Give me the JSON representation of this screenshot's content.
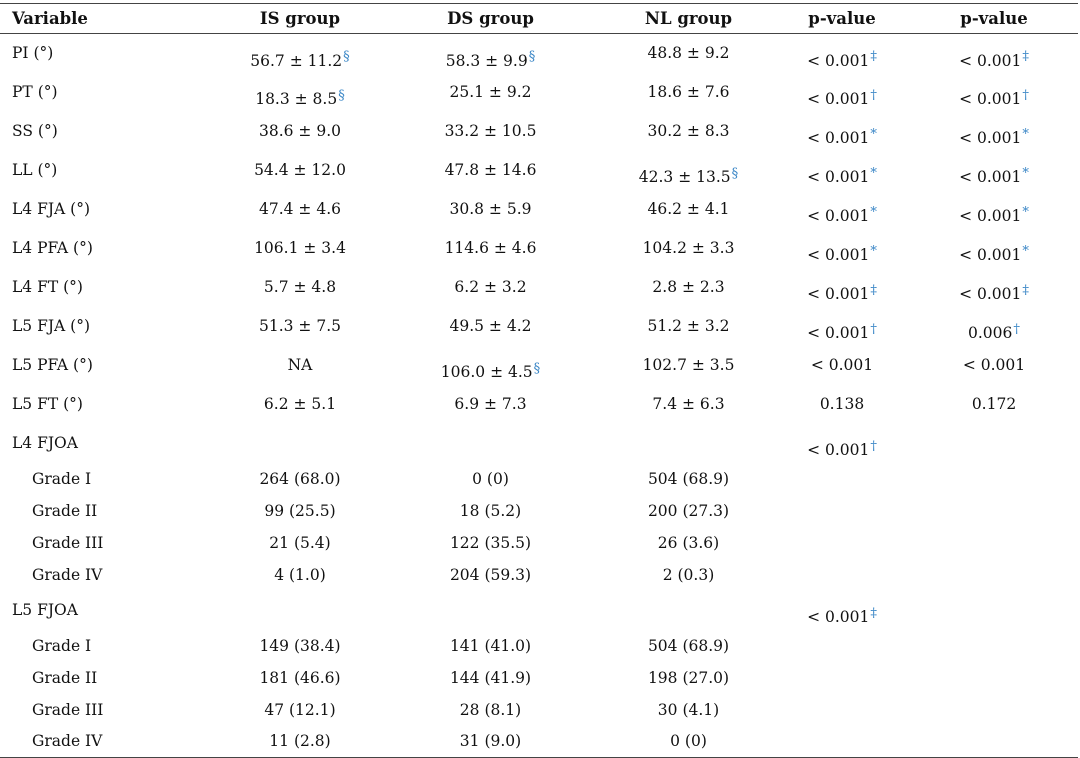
{
  "columns": [
    "Variable",
    "IS group",
    "DS group",
    "NL group",
    "p-value",
    "p-value"
  ],
  "rows": [
    {
      "label": "PI (°)",
      "c1": {
        "v": "56.7 ± 11.2",
        "s": "§",
        "low": true
      },
      "c2": {
        "v": "58.3 ± 9.9",
        "s": "§",
        "low": true
      },
      "c3": {
        "v": "48.8 ± 9.2"
      },
      "p1": {
        "v": "< 0.001",
        "s": "‡",
        "low": true
      },
      "p2": {
        "v": "< 0.001",
        "s": "‡",
        "low": true
      }
    },
    {
      "label": "PT (°)",
      "c1": {
        "v": "18.3 ± 8.5",
        "s": "§",
        "low": true
      },
      "c2": {
        "v": "25.1 ± 9.2"
      },
      "c3": {
        "v": "18.6 ± 7.6"
      },
      "p1": {
        "v": "< 0.001",
        "s": "†",
        "low": true
      },
      "p2": {
        "v": "< 0.001",
        "s": "†",
        "low": true
      }
    },
    {
      "label": "SS (°)",
      "c1": {
        "v": "38.6 ± 9.0"
      },
      "c2": {
        "v": "33.2 ± 10.5"
      },
      "c3": {
        "v": "30.2 ± 8.3"
      },
      "p1": {
        "v": "< 0.001",
        "s": "*",
        "low": true
      },
      "p2": {
        "v": "< 0.001",
        "s": "*",
        "low": true
      }
    },
    {
      "label": "LL (°)",
      "c1": {
        "v": "54.4 ± 12.0"
      },
      "c2": {
        "v": "47.8 ± 14.6"
      },
      "c3": {
        "v": "42.3 ± 13.5",
        "s": "§",
        "low": true
      },
      "p1": {
        "v": "< 0.001",
        "s": "*",
        "low": true
      },
      "p2": {
        "v": "< 0.001",
        "s": "*",
        "low": true
      }
    },
    {
      "label": "L4 FJA (°)",
      "c1": {
        "v": "47.4 ± 4.6"
      },
      "c2": {
        "v": "30.8 ± 5.9"
      },
      "c3": {
        "v": "46.2 ± 4.1"
      },
      "p1": {
        "v": "< 0.001",
        "s": "*",
        "low": true
      },
      "p2": {
        "v": "< 0.001",
        "s": "*",
        "low": true
      }
    },
    {
      "label": "L4 PFA (°)",
      "c1": {
        "v": "106.1 ± 3.4"
      },
      "c2": {
        "v": "114.6 ± 4.6"
      },
      "c3": {
        "v": "104.2 ± 3.3"
      },
      "p1": {
        "v": "< 0.001",
        "s": "*",
        "low": true
      },
      "p2": {
        "v": "< 0.001",
        "s": "*",
        "low": true
      }
    },
    {
      "label": "L4 FT (°)",
      "c1": {
        "v": "5.7 ± 4.8"
      },
      "c2": {
        "v": "6.2 ± 3.2"
      },
      "c3": {
        "v": "2.8 ± 2.3"
      },
      "p1": {
        "v": "< 0.001",
        "s": "‡",
        "low": true
      },
      "p2": {
        "v": "< 0.001",
        "s": "‡",
        "low": true
      }
    },
    {
      "label": "L5 FJA (°)",
      "c1": {
        "v": "51.3 ± 7.5"
      },
      "c2": {
        "v": "49.5 ± 4.2"
      },
      "c3": {
        "v": "51.2 ± 3.2"
      },
      "p1": {
        "v": "< 0.001",
        "s": "†",
        "low": true
      },
      "p2": {
        "v": "0.006",
        "s": "†",
        "low": true
      }
    },
    {
      "label": "L5 PFA (°)",
      "c1": {
        "v": "NA"
      },
      "c2": {
        "v": "106.0 ± 4.5",
        "s": "§",
        "low": true
      },
      "c3": {
        "v": "102.7 ± 3.5"
      },
      "p1": {
        "v": "< 0.001"
      },
      "p2": {
        "v": "< 0.001"
      }
    },
    {
      "label": "L5 FT (°)",
      "c1": {
        "v": "6.2 ± 5.1"
      },
      "c2": {
        "v": "6.9 ± 7.3"
      },
      "c3": {
        "v": "7.4 ± 6.3"
      },
      "p1": {
        "v": "0.138"
      },
      "p2": {
        "v": "0.172"
      }
    },
    {
      "label": "L4 FJOA",
      "section": true,
      "p1": {
        "v": "< 0.001",
        "s": "†",
        "low": true
      }
    },
    {
      "label": "Grade I",
      "grade": true,
      "c1": {
        "v": "264 (68.0)"
      },
      "c2": {
        "v": "0 (0)"
      },
      "c3": {
        "v": "504 (68.9)"
      }
    },
    {
      "label": "Grade II",
      "grade": true,
      "c1": {
        "v": "99 (25.5)"
      },
      "c2": {
        "v": "18 (5.2)"
      },
      "c3": {
        "v": "200 (27.3)"
      }
    },
    {
      "label": "Grade III",
      "grade": true,
      "c1": {
        "v": "21 (5.4)"
      },
      "c2": {
        "v": "122 (35.5)"
      },
      "c3": {
        "v": "26 (3.6)"
      }
    },
    {
      "label": "Grade IV",
      "grade": true,
      "c1": {
        "v": "4 (1.0)"
      },
      "c2": {
        "v": "204 (59.3)"
      },
      "c3": {
        "v": "2 (0.3)"
      }
    },
    {
      "label": "L5 FJOA",
      "section": true,
      "p1": {
        "v": "< 0.001",
        "s": "‡",
        "low": true
      }
    },
    {
      "label": "Grade I",
      "grade": true,
      "c1": {
        "v": "149 (38.4)"
      },
      "c2": {
        "v": "141 (41.0)"
      },
      "c3": {
        "v": "504 (68.9)"
      }
    },
    {
      "label": "Grade II",
      "grade": true,
      "c1": {
        "v": "181 (46.6)"
      },
      "c2": {
        "v": "144 (41.9)"
      },
      "c3": {
        "v": "198 (27.0)"
      }
    },
    {
      "label": "Grade III",
      "grade": true,
      "c1": {
        "v": "47 (12.1)"
      },
      "c2": {
        "v": "28 (8.1)"
      },
      "c3": {
        "v": "30 (4.1)"
      }
    },
    {
      "label": "Grade IV",
      "grade": true,
      "c1": {
        "v": "11 (2.8)"
      },
      "c2": {
        "v": "31 (9.0)"
      },
      "c3": {
        "v": "0 (0)"
      }
    }
  ],
  "colors": {
    "footnote_marker": "#3a86c6",
    "text": "#111111",
    "rule": "#444444"
  }
}
